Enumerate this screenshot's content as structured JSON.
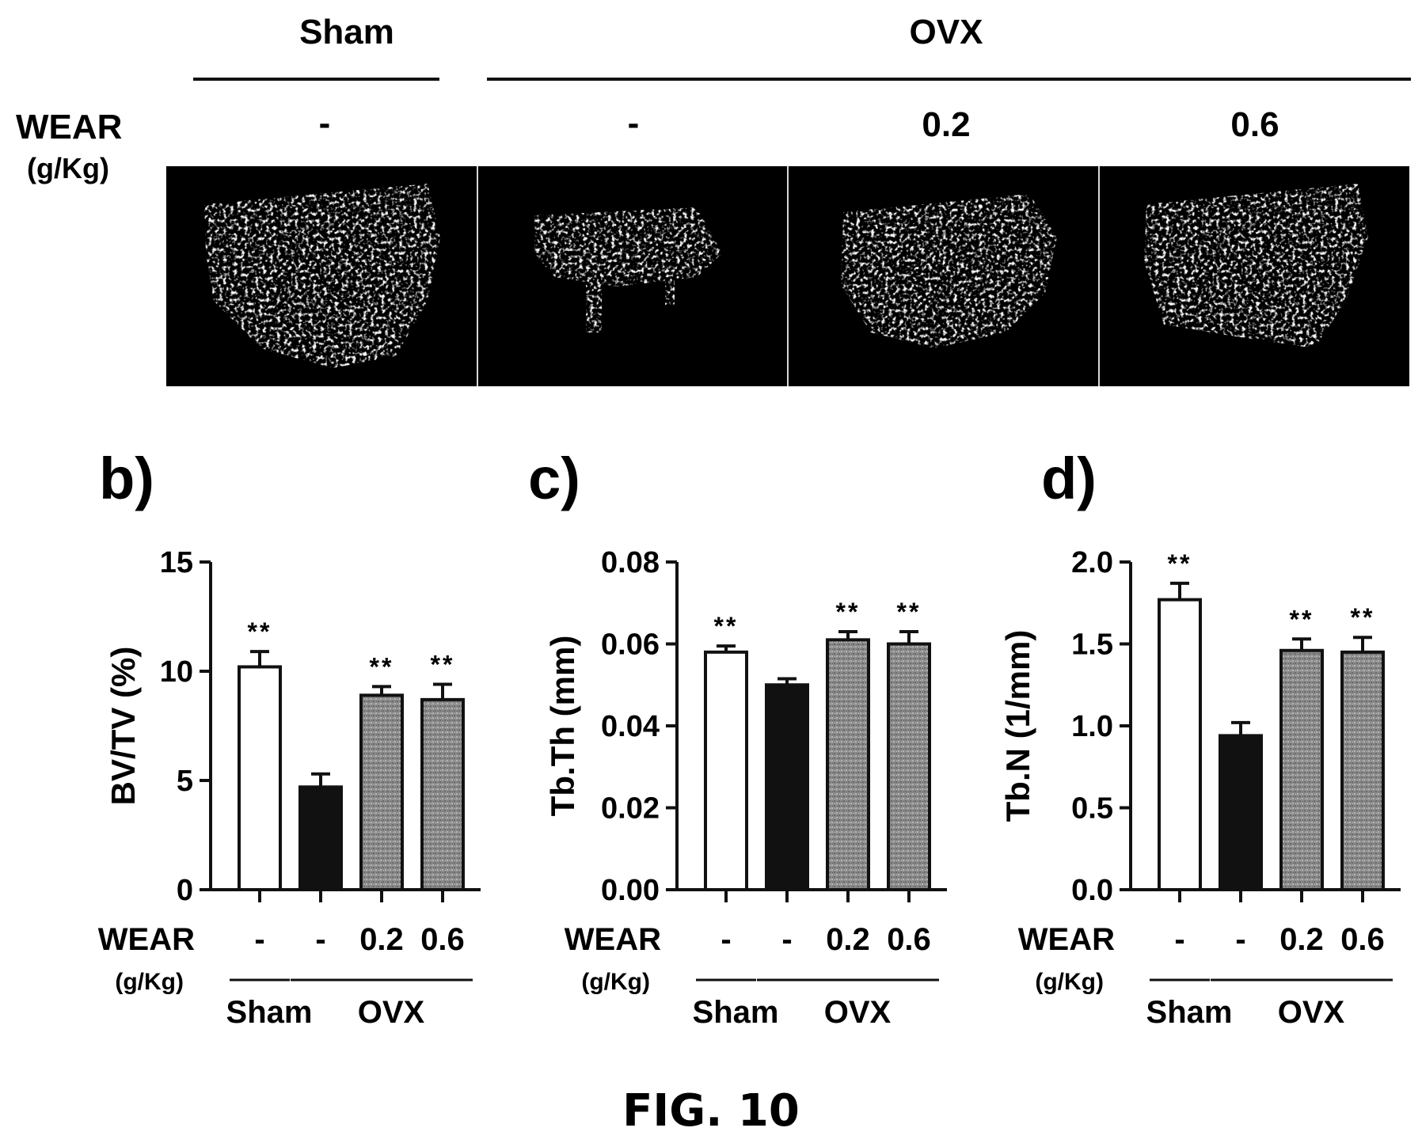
{
  "top_panel": {
    "group_sham": "Sham",
    "group_ovx": "OVX",
    "dose_label_line1": "WEAR",
    "dose_label_line2": "(g/Kg)",
    "doses": [
      "-",
      "-",
      "0.2",
      "0.6"
    ],
    "image_panels": [
      "Sham control",
      "OVX control",
      "OVX + WEAR 0.2",
      "OVX + WEAR 0.6"
    ]
  },
  "figure_caption": "FIG. 10",
  "chart_data": [
    {
      "type": "bar",
      "panel_label": "b)",
      "ylabel": "BV/TV (%)",
      "ylim": [
        0,
        15
      ],
      "yticks": [
        "0",
        "5",
        "10",
        "15"
      ],
      "categories": [
        "Sham",
        "OVX",
        "OVX + WEAR 0.2",
        "OVX + WEAR 0.6"
      ],
      "values": [
        10.2,
        4.7,
        8.9,
        8.7
      ],
      "errors": [
        0.7,
        0.6,
        0.4,
        0.7
      ],
      "significance": [
        "**",
        "",
        "**",
        "**"
      ],
      "bar_fills": [
        "white",
        "black",
        "gray",
        "gray"
      ],
      "dose_label_line1": "WEAR",
      "dose_label_line2": "(g/Kg)",
      "doses": [
        "-",
        "-",
        "0.2",
        "0.6"
      ],
      "group_sham": "Sham",
      "group_ovx": "OVX"
    },
    {
      "type": "bar",
      "panel_label": "c)",
      "ylabel": "Tb.Th (mm)",
      "ylim": [
        0,
        0.08
      ],
      "yticks": [
        "0.00",
        "0.02",
        "0.04",
        "0.06",
        "0.08"
      ],
      "categories": [
        "Sham",
        "OVX",
        "OVX + WEAR 0.2",
        "OVX + WEAR 0.6"
      ],
      "values": [
        0.058,
        0.05,
        0.061,
        0.06
      ],
      "errors": [
        0.0015,
        0.0015,
        0.002,
        0.003
      ],
      "significance": [
        "**",
        "",
        "**",
        "**"
      ],
      "bar_fills": [
        "white",
        "black",
        "gray",
        "gray"
      ],
      "dose_label_line1": "WEAR",
      "dose_label_line2": "(g/Kg)",
      "doses": [
        "-",
        "-",
        "0.2",
        "0.6"
      ],
      "group_sham": "Sham",
      "group_ovx": "OVX"
    },
    {
      "type": "bar",
      "panel_label": "d)",
      "ylabel": "Tb.N (1/mm)",
      "ylim": [
        0,
        2.0
      ],
      "yticks": [
        "0.0",
        "0.5",
        "1.0",
        "1.5",
        "2.0"
      ],
      "categories": [
        "Sham",
        "OVX",
        "OVX + WEAR 0.2",
        "OVX + WEAR 0.6"
      ],
      "values": [
        1.77,
        0.94,
        1.46,
        1.45
      ],
      "errors": [
        0.1,
        0.08,
        0.07,
        0.09
      ],
      "significance": [
        "**",
        "",
        "**",
        "**"
      ],
      "bar_fills": [
        "white",
        "black",
        "gray",
        "gray"
      ],
      "dose_label_line1": "WEAR",
      "dose_label_line2": "(g/Kg)",
      "doses": [
        "-",
        "-",
        "0.2",
        "0.6"
      ],
      "group_sham": "Sham",
      "group_ovx": "OVX"
    }
  ]
}
